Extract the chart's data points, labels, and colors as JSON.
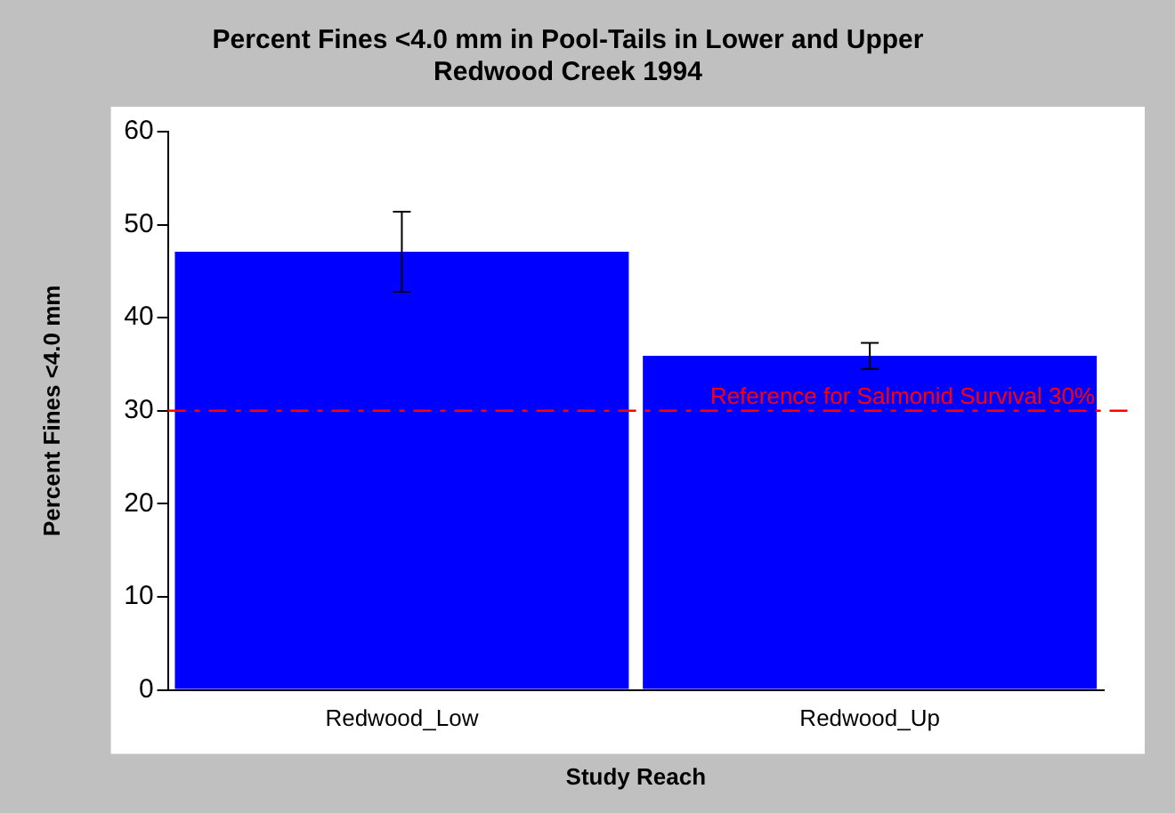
{
  "chart_data": {
    "type": "bar",
    "title": "Percent Fines <4.0 mm in Pool-Tails in Lower and Upper\nRedwood Creek 1994",
    "xlabel": "Study Reach",
    "ylabel": "Percent Fines <4.0 mm",
    "categories": [
      "Redwood_Low",
      "Redwood_Up"
    ],
    "values": [
      47.1,
      35.9
    ],
    "errors": [
      4.3,
      1.4
    ],
    "color": "#0000ff",
    "ylim": [
      0,
      60
    ],
    "yticks": [
      0,
      10,
      20,
      30,
      40,
      50,
      60
    ],
    "grid": false,
    "legend": false,
    "ref_lines": [
      {
        "axis": "y",
        "value": 30,
        "label": "Reference for Salmonid Survival 30%",
        "color": "#ff0000",
        "line_style": "dashdot"
      }
    ]
  }
}
